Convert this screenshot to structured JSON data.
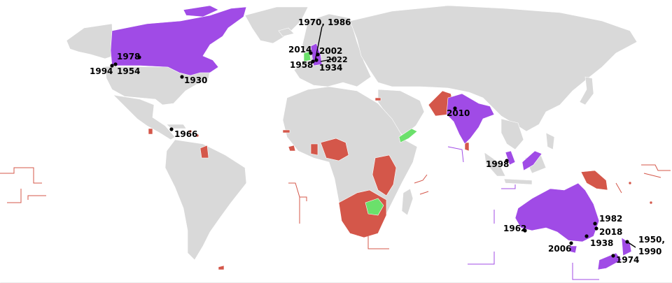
{
  "colors": {
    "ocean": "#ffffff",
    "land": "#d9d9d9",
    "border": "#ffffff",
    "host": "#a04be6",
    "member": "#d4574a",
    "green": "#6be06b",
    "marker": "#000000"
  },
  "labels": {
    "y1930": "1930",
    "y1934": "1934",
    "y1938": "1938",
    "y1950": "1950,",
    "y1990": "1990",
    "y1954": "1954",
    "y1958": "1958",
    "y1962": "1962",
    "y1966": "1966",
    "y1970_1986": "1970, 1986",
    "y1974": "1974",
    "y1978": "1978",
    "y1982": "1982",
    "y1994": "1994",
    "y1998": "1998",
    "y2002": "2002",
    "y2006": "2006",
    "y2010": "2010",
    "y2014": "2014",
    "y2018": "2018",
    "y2022": "2022"
  }
}
